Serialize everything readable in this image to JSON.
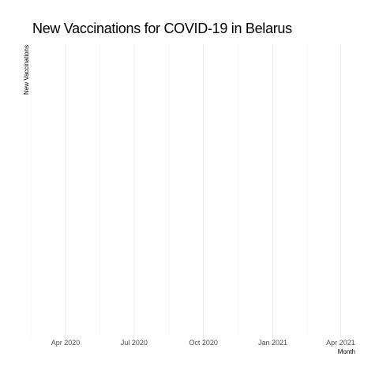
{
  "chart_data": {
    "type": "line",
    "title": "New Vaccinations for COVID-19 in Belarus",
    "xlabel": "Month",
    "ylabel": "New Vaccinations",
    "x_type": "date",
    "xlim": [
      "2020-02-17",
      "2021-04-10"
    ],
    "x_ticks": [
      {
        "date": "2020-04-01",
        "label": "Apr 2020"
      },
      {
        "date": "2020-07-01",
        "label": "Jul 2020"
      },
      {
        "date": "2020-10-01",
        "label": "Oct 2020"
      },
      {
        "date": "2021-01-01",
        "label": "Jan 2021"
      },
      {
        "date": "2021-04-01",
        "label": "Apr 2021"
      }
    ],
    "x_minor_ticks": [
      "2020-02-15",
      "2020-05-16",
      "2020-08-16",
      "2020-11-16",
      "2021-02-15"
    ],
    "y_ticks": [],
    "series": [],
    "grid": true,
    "legend": "none",
    "colors": {
      "grid_major": "#ebebeb",
      "grid_minor": "#f4f4f4",
      "tick_text": "#4d4d4d",
      "axis_title": "#000000"
    }
  }
}
